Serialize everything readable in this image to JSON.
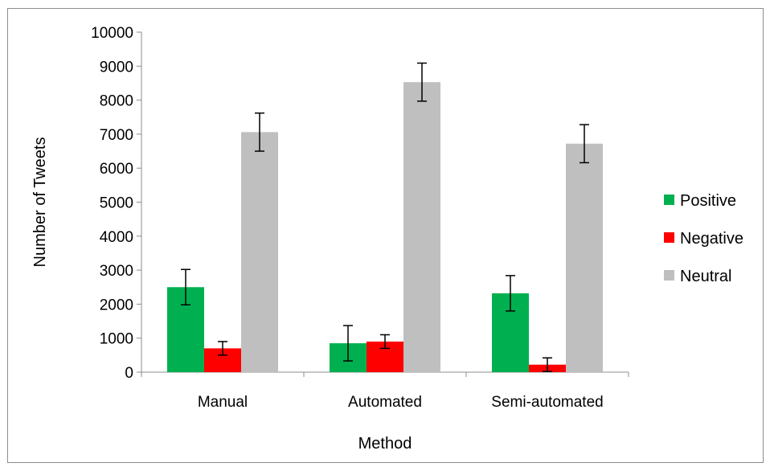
{
  "chart_data": {
    "type": "bar",
    "title": "",
    "xlabel": "Method",
    "ylabel": "Number of Tweets",
    "ylim": [
      0,
      10000
    ],
    "yticks": [
      0,
      1000,
      2000,
      3000,
      4000,
      5000,
      6000,
      7000,
      8000,
      9000,
      10000
    ],
    "categories": [
      "Manual",
      "Automated",
      "Semi-automated"
    ],
    "series": [
      {
        "name": "Positive",
        "color": "#00b050",
        "values": [
          2500,
          850,
          2320
        ],
        "errors": [
          520,
          520,
          520
        ]
      },
      {
        "name": "Negative",
        "color": "#ff0000",
        "values": [
          700,
          900,
          220
        ],
        "errors": [
          200,
          200,
          200
        ]
      },
      {
        "name": "Neutral",
        "color": "#bfbfbf",
        "values": [
          7060,
          8530,
          6720
        ],
        "errors": [
          560,
          560,
          560
        ]
      }
    ],
    "error_bars": true,
    "grid": false,
    "legend_position": "right"
  }
}
